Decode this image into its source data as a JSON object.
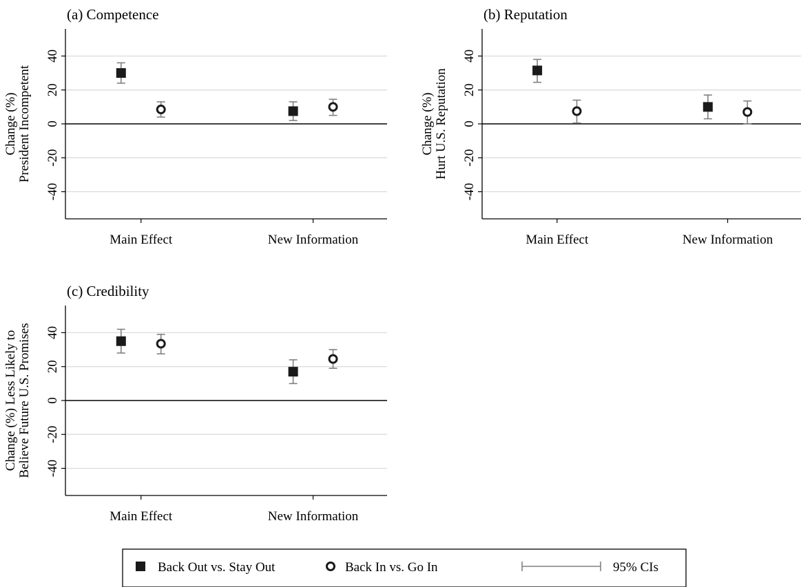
{
  "chart_data": [
    {
      "type": "scatter",
      "title": "(a) Competence",
      "ylabel_lines": [
        "Change (%)",
        "President Incompetent"
      ],
      "categories": [
        "Main Effect",
        "New Information"
      ],
      "yticks": [
        -40,
        -20,
        0,
        20,
        40
      ],
      "ylim": [
        -56,
        56
      ],
      "grid": true,
      "series": [
        {
          "name": "Back Out vs. Stay Out",
          "values": [
            30,
            7.5
          ],
          "ci_low": [
            24,
            2
          ],
          "ci_high": [
            36,
            13
          ]
        },
        {
          "name": "Back In vs. Go In",
          "values": [
            8.5,
            10
          ],
          "ci_low": [
            4,
            5
          ],
          "ci_high": [
            13,
            14.5
          ]
        }
      ]
    },
    {
      "type": "scatter",
      "title": "(b) Reputation",
      "ylabel_lines": [
        "Change (%)",
        "Hurt U.S. Reputation"
      ],
      "categories": [
        "Main Effect",
        "New Information"
      ],
      "yticks": [
        -40,
        -20,
        0,
        20,
        40
      ],
      "ylim": [
        -56,
        56
      ],
      "grid": true,
      "series": [
        {
          "name": "Back Out vs. Stay Out",
          "values": [
            31.5,
            10
          ],
          "ci_low": [
            24.5,
            3
          ],
          "ci_high": [
            38,
            17
          ]
        },
        {
          "name": "Back In vs. Go In",
          "values": [
            7.5,
            7
          ],
          "ci_low": [
            0.5,
            0
          ],
          "ci_high": [
            14,
            13.5
          ]
        }
      ]
    },
    {
      "type": "scatter",
      "title": "(c) Credibility",
      "ylabel_lines": [
        "Change (%) Less Likely to",
        "Believe Future U.S. Promises"
      ],
      "categories": [
        "Main Effect",
        "New Information"
      ],
      "yticks": [
        -40,
        -20,
        0,
        20,
        40
      ],
      "ylim": [
        -56,
        56
      ],
      "grid": true,
      "series": [
        {
          "name": "Back Out vs. Stay Out",
          "values": [
            35,
            17
          ],
          "ci_low": [
            28,
            10
          ],
          "ci_high": [
            42,
            24
          ]
        },
        {
          "name": "Back In vs. Go In",
          "values": [
            33.5,
            24.5
          ],
          "ci_low": [
            27.5,
            19
          ],
          "ci_high": [
            39,
            30
          ]
        }
      ]
    }
  ],
  "legend": {
    "items": [
      {
        "label": "Back Out vs. Stay Out",
        "marker": "filled-square"
      },
      {
        "label": "Back In vs. Go In",
        "marker": "hollow-circle"
      },
      {
        "label": "95% CIs",
        "marker": "ci-line"
      }
    ]
  },
  "colors": {
    "grid": "#d9d9d9",
    "ci": "#808080",
    "marker": "#1a1a1a",
    "axis": "#000000"
  }
}
